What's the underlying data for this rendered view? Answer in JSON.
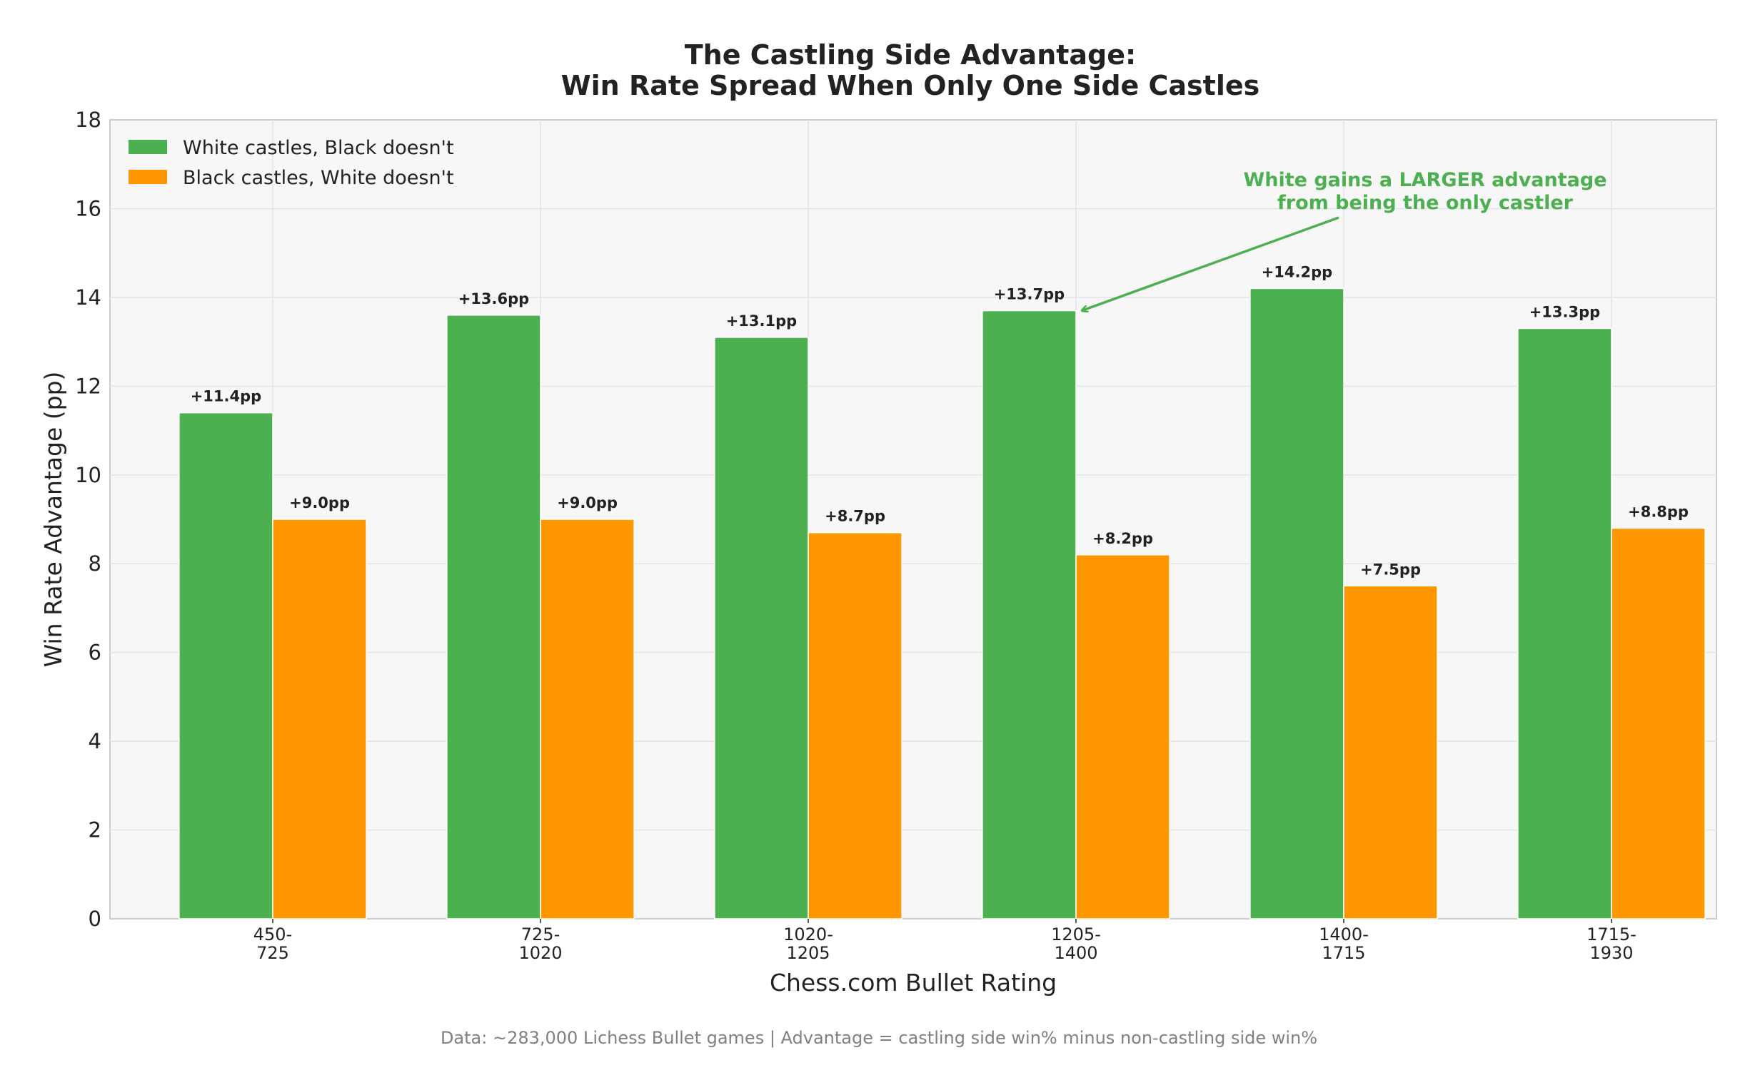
{
  "chart_data": {
    "type": "bar",
    "title_lines": [
      "The Castling Side Advantage:",
      "Win Rate Spread When Only One Side Castles"
    ],
    "xlabel": "Chess.com Bullet Rating",
    "ylabel": "Win Rate Advantage (pp)",
    "ylim": [
      0,
      18
    ],
    "yticks": [
      "0",
      "2",
      "4",
      "6",
      "8",
      "10",
      "12",
      "14",
      "16",
      "18"
    ],
    "grid": true,
    "legend_position": "top-left",
    "categories": [
      [
        "450-",
        "725"
      ],
      [
        "725-",
        "1020"
      ],
      [
        "1020-",
        "1205"
      ],
      [
        "1205-",
        "1400"
      ],
      [
        "1400-",
        "1715"
      ],
      [
        "1715-",
        "1930"
      ]
    ],
    "series": [
      {
        "name": "White castles, Black doesn't",
        "color": "#4caf50",
        "values": [
          11.4,
          13.6,
          13.1,
          13.7,
          14.2,
          13.3
        ],
        "labels": [
          "+11.4pp",
          "+13.6pp",
          "+13.1pp",
          "+13.7pp",
          "+14.2pp",
          "+13.3pp"
        ]
      },
      {
        "name": "Black castles, White doesn't",
        "color": "#ff9800",
        "values": [
          9.0,
          9.0,
          8.7,
          8.2,
          7.5,
          8.8
        ],
        "labels": [
          "+9.0pp",
          "+9.0pp",
          "+8.7pp",
          "+8.2pp",
          "+7.5pp",
          "+8.8pp"
        ]
      }
    ],
    "annotation": {
      "lines": [
        "White gains a LARGER advantage",
        "from being the only castler"
      ],
      "color": "#4caf50",
      "points_to_category": 3,
      "points_to_series": 0
    },
    "footer": "Data: ~283,000 Lichess Bullet games | Advantage = castling side win% minus non-castling side win%"
  }
}
